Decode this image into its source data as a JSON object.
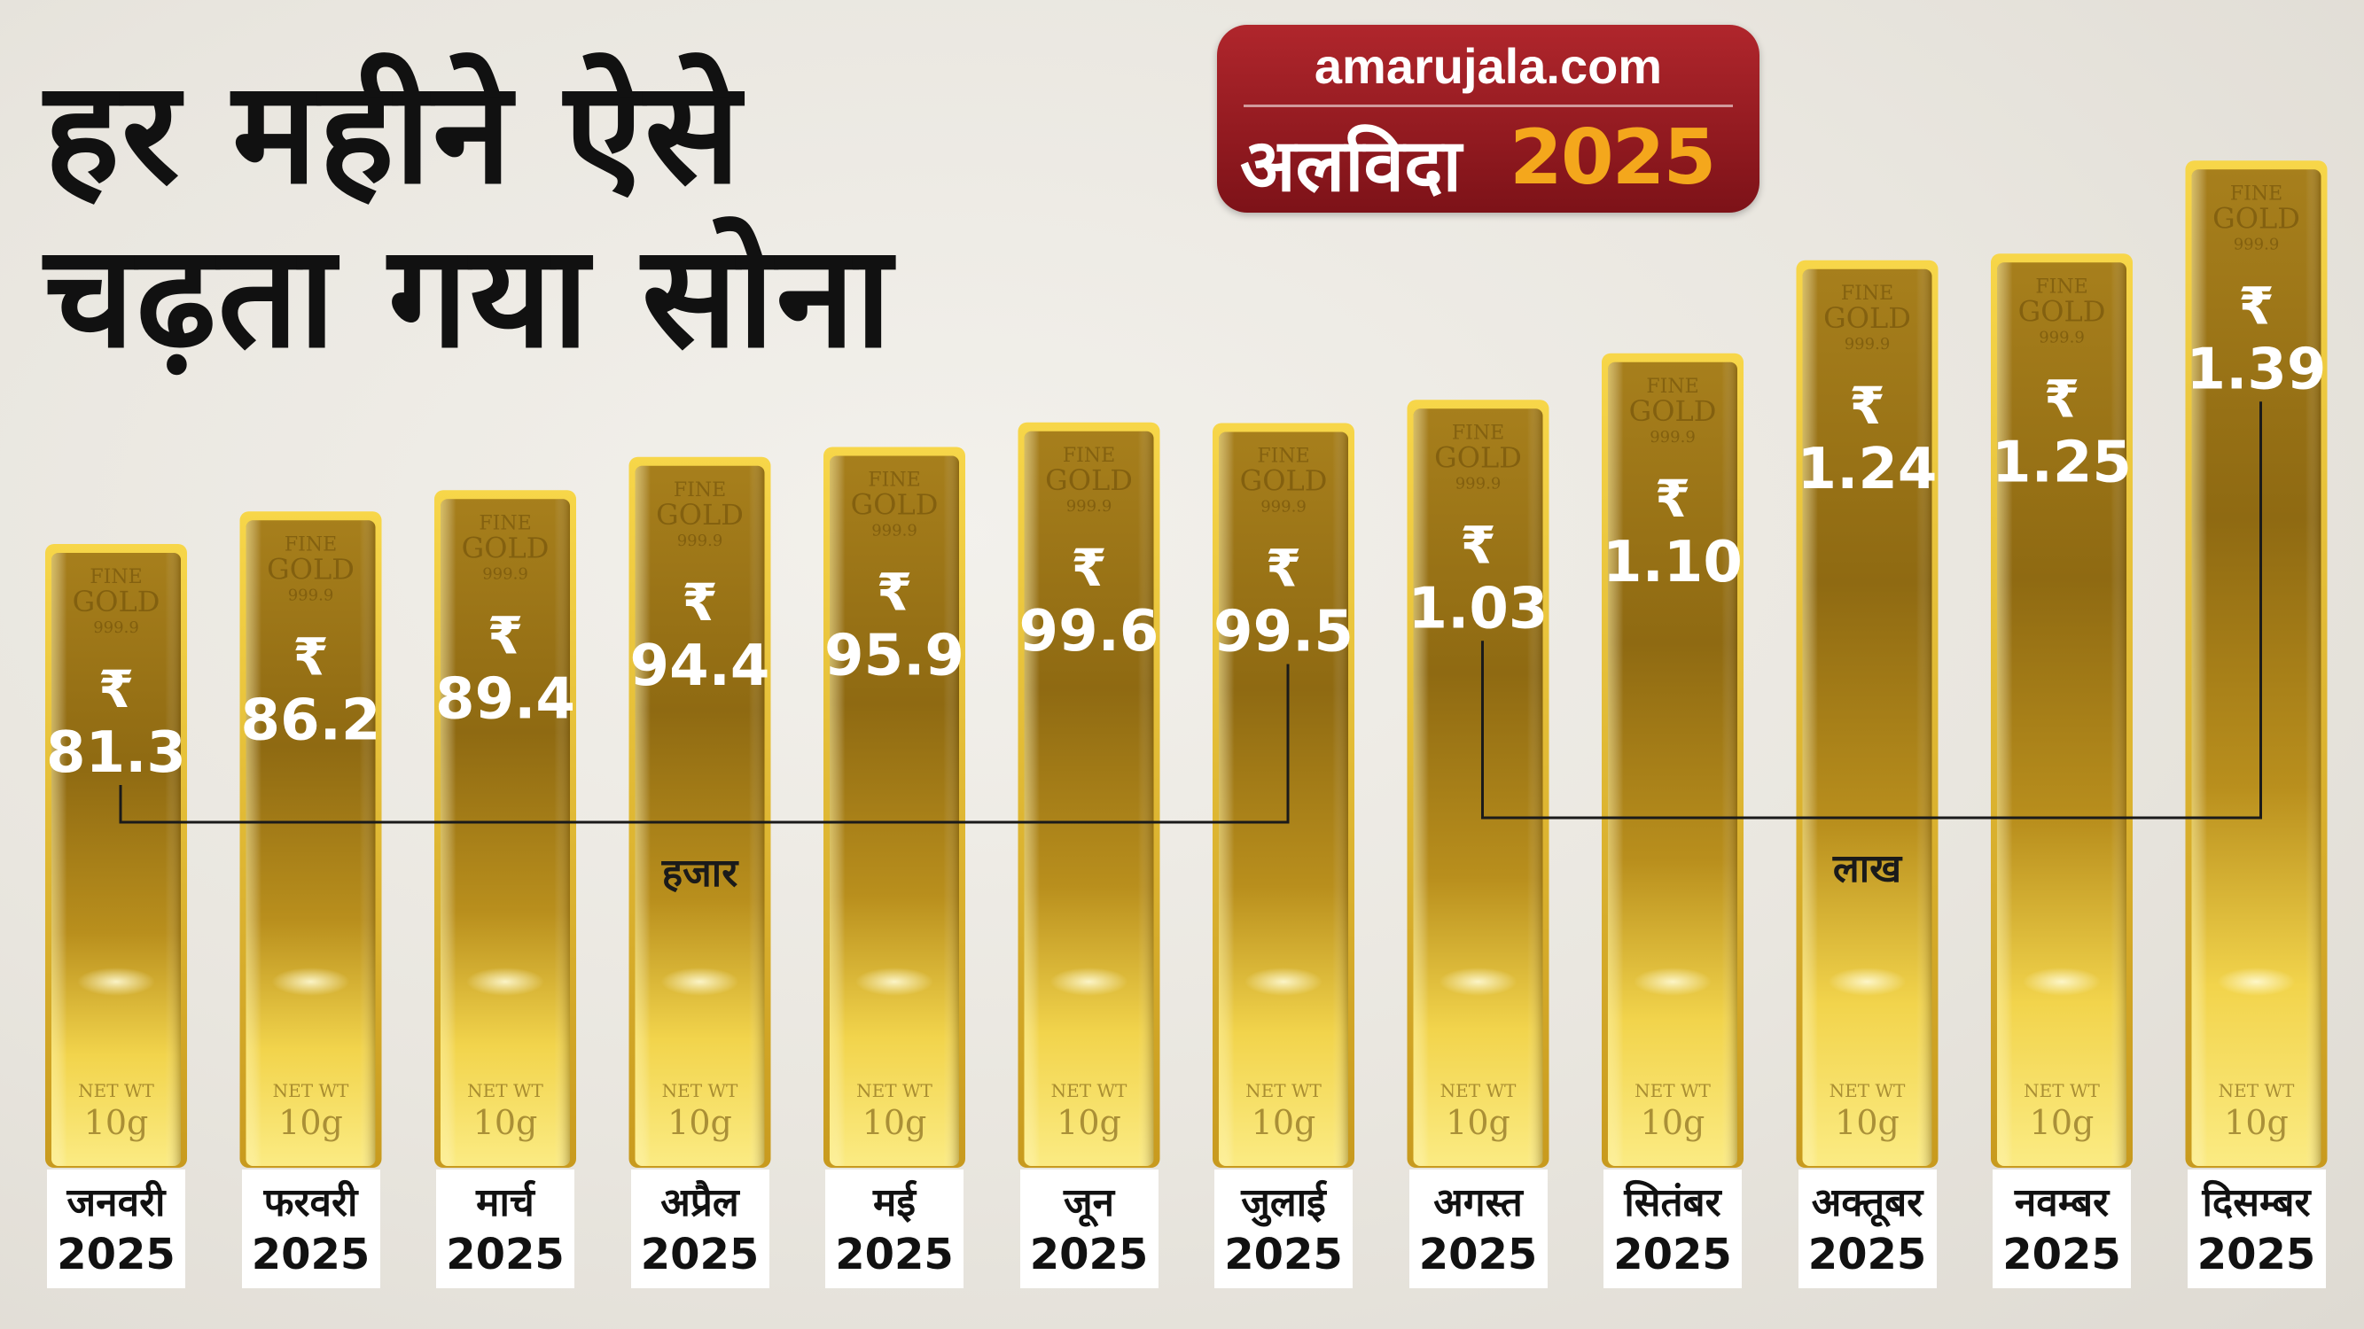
{
  "header": {
    "title_line1": "हर महीने ऐसे",
    "title_line2": "चढ़ता गया सोना"
  },
  "logo": {
    "brand": "amarujala.com",
    "word": "अलविदा",
    "year": "2025",
    "bg_color": "#9c1c22",
    "accent_color": "#f4a71c"
  },
  "bar_text": {
    "fine": "FINE",
    "gold": "GOLD",
    "purity": "999.9",
    "net_wt": "NET WT",
    "weight": "10g",
    "currency": "₹"
  },
  "chart_data": {
    "type": "bar",
    "categories": [
      "जनवरी",
      "फरवरी",
      "मार्च",
      "अप्रैल",
      "मई",
      "जून",
      "जुलाई",
      "अगस्त",
      "सितंबर",
      "अक्तूबर",
      "नवम्बर",
      "दिसम्बर"
    ],
    "category_year": "2025",
    "value_labels": [
      "81.3",
      "86.2",
      "89.4",
      "94.4",
      "95.9",
      "99.6",
      "99.5",
      "1.03",
      "1.10",
      "1.24",
      "1.25",
      "1.39"
    ],
    "values_rupees": [
      81300,
      86200,
      89400,
      94400,
      95900,
      99600,
      99500,
      103000,
      110000,
      124000,
      125000,
      139000
    ],
    "groups": [
      {
        "label": "हजार",
        "from": 0,
        "to": 6
      },
      {
        "label": "लाख",
        "from": 7,
        "to": 11
      }
    ],
    "bar_color": "#c9a227"
  }
}
